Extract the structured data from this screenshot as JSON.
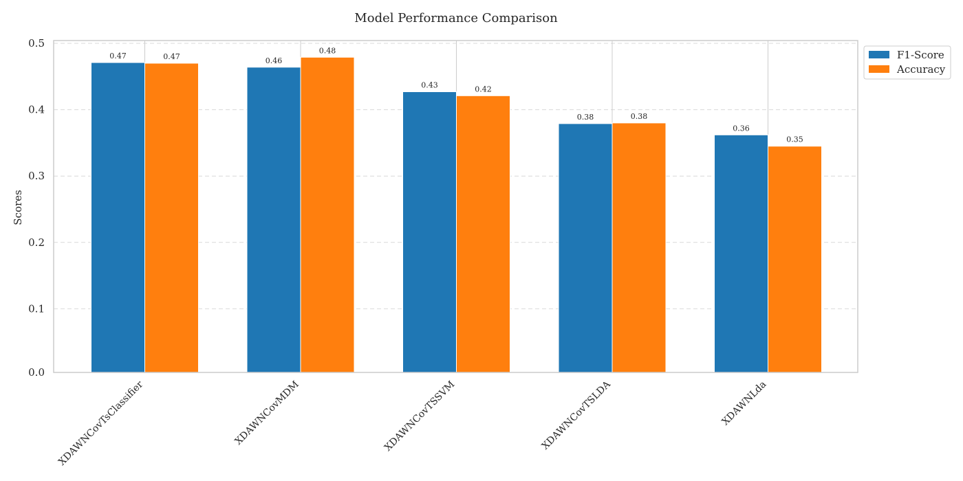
{
  "chart_data": {
    "type": "bar",
    "title": "Model Performance Comparison",
    "xlabel": "",
    "ylabel": "Scores",
    "ylim": [
      0,
      0.5
    ],
    "yticks": [
      0.0,
      0.1,
      0.2,
      0.3,
      0.4,
      0.5
    ],
    "ytick_labels": [
      "0.0",
      "0.1",
      "0.2",
      "0.3",
      "0.4",
      "0.5"
    ],
    "grid": "y-dashed",
    "legend_position": "top-right-outside",
    "categories": [
      "XDAWNCovTsClassifier",
      "XDAWNCovMDM",
      "XDAWNCovTSSVM",
      "XDAWNCovTSLDA",
      "XDAWNLda"
    ],
    "series": [
      {
        "name": "F1-Score",
        "color": "#1f77b4",
        "values": [
          0.471,
          0.464,
          0.427,
          0.379,
          0.362
        ],
        "labels": [
          "0.47",
          "0.46",
          "0.43",
          "0.38",
          "0.36"
        ]
      },
      {
        "name": "Accuracy",
        "color": "#ff7f0e",
        "values": [
          0.47,
          0.479,
          0.421,
          0.38,
          0.345
        ],
        "labels": [
          "0.47",
          "0.48",
          "0.42",
          "0.38",
          "0.35"
        ]
      }
    ]
  }
}
